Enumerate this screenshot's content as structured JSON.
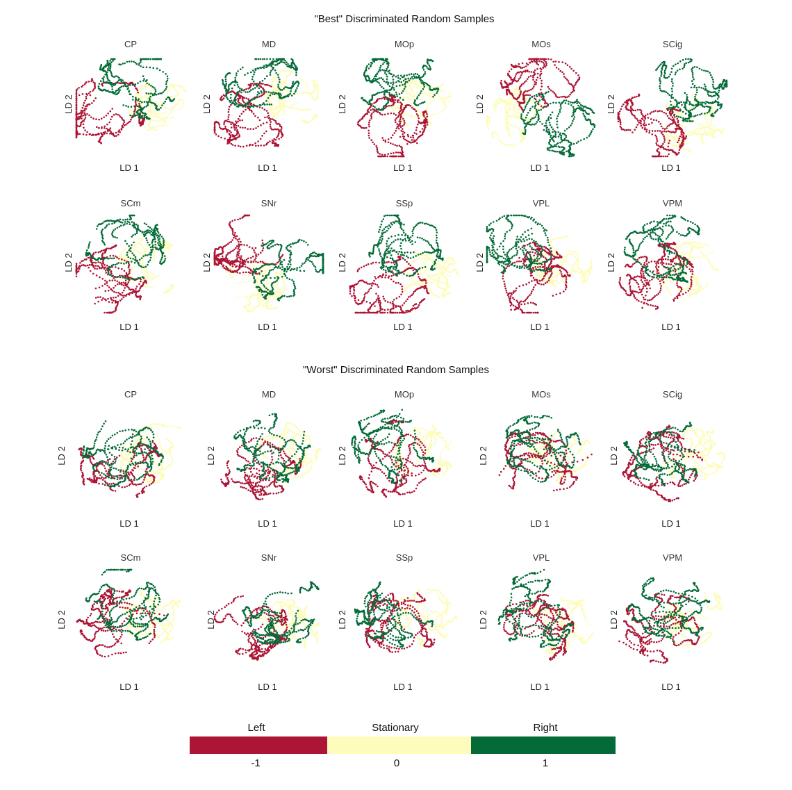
{
  "colors": {
    "left": "#ac1535",
    "stationary": "#fdfcbb",
    "right": "#046b38"
  },
  "axes": {
    "x_label": "LD 1",
    "y_label": "LD 2"
  },
  "sections": [
    {
      "title": "\"Best\" Discriminated Random Samples",
      "panels": [
        {
          "title": "CP"
        },
        {
          "title": "MD"
        },
        {
          "title": "MOp"
        },
        {
          "title": "MOs"
        },
        {
          "title": "SCig"
        },
        {
          "title": "SCm"
        },
        {
          "title": "SNr"
        },
        {
          "title": "SSp"
        },
        {
          "title": "VPL"
        },
        {
          "title": "VPM"
        }
      ]
    },
    {
      "title": "\"Worst\" Discriminated Random Samples",
      "panels": [
        {
          "title": "CP"
        },
        {
          "title": "MD"
        },
        {
          "title": "MOp"
        },
        {
          "title": "MOs"
        },
        {
          "title": "SCig"
        },
        {
          "title": "SCm"
        },
        {
          "title": "SNr"
        },
        {
          "title": "SSp"
        },
        {
          "title": "VPL"
        },
        {
          "title": "VPM"
        }
      ]
    }
  ],
  "legend": {
    "labels": [
      "Left",
      "Stationary",
      "Right"
    ],
    "ticks": [
      "-1",
      "0",
      "1"
    ]
  },
  "chart_data": {
    "type": "scatter",
    "grid": false,
    "axis_ticks": false,
    "legend_position": "bottom",
    "series": [
      {
        "name": "Left",
        "value": -1,
        "color": "#ac1535"
      },
      {
        "name": "Stationary",
        "value": 0,
        "color": "#fdfcbb"
      },
      {
        "name": "Right",
        "value": 1,
        "color": "#046b38"
      }
    ],
    "panel_layout": "2 sections x 2 rows x 5 columns",
    "point_clouds": {
      "best": {
        "CP": {
          "left": {
            "c": [
              -0.55,
              -0.05
            ],
            "s": [
              0.28,
              0.26
            ]
          },
          "stationary": {
            "c": [
              0.55,
              0.0
            ],
            "s": [
              0.33,
              0.2
            ]
          },
          "right": {
            "c": [
              0.15,
              0.55
            ],
            "s": [
              0.2,
              0.3
            ]
          }
        },
        "MD": {
          "left": {
            "c": [
              -0.3,
              -0.2
            ],
            "s": [
              0.28,
              0.32
            ]
          },
          "stationary": {
            "c": [
              0.45,
              0.25
            ],
            "s": [
              0.33,
              0.25
            ]
          },
          "right": {
            "c": [
              -0.15,
              0.55
            ],
            "s": [
              0.3,
              0.22
            ]
          }
        },
        "MOp": {
          "left": {
            "c": [
              -0.3,
              -0.5
            ],
            "s": [
              0.28,
              0.28
            ]
          },
          "stationary": {
            "c": [
              0.35,
              0.15
            ],
            "s": [
              0.3,
              0.22
            ]
          },
          "right": {
            "c": [
              -0.1,
              0.55
            ],
            "s": [
              0.2,
              0.25
            ]
          }
        },
        "MOs": {
          "left": {
            "c": [
              0.05,
              0.55
            ],
            "s": [
              0.22,
              0.32
            ]
          },
          "stationary": {
            "c": [
              -0.45,
              -0.2
            ],
            "s": [
              0.28,
              0.3
            ]
          },
          "right": {
            "c": [
              0.25,
              -0.25
            ],
            "s": [
              0.3,
              0.28
            ]
          }
        },
        "SCig": {
          "left": {
            "c": [
              -0.45,
              -0.45
            ],
            "s": [
              0.28,
              0.25
            ]
          },
          "stationary": {
            "c": [
              0.35,
              -0.35
            ],
            "s": [
              0.3,
              0.25
            ]
          },
          "right": {
            "c": [
              0.3,
              0.45
            ],
            "s": [
              0.14,
              0.35
            ]
          }
        },
        "SCm": {
          "left": {
            "c": [
              -0.45,
              -0.35
            ],
            "s": [
              0.3,
              0.35
            ]
          },
          "stationary": {
            "c": [
              0.35,
              0.0
            ],
            "s": [
              0.32,
              0.35
            ]
          },
          "right": {
            "c": [
              -0.05,
              0.3
            ],
            "s": [
              0.25,
              0.35
            ]
          }
        },
        "SNr": {
          "left": {
            "c": [
              -0.35,
              0.4
            ],
            "s": [
              0.25,
              0.35
            ]
          },
          "stationary": {
            "c": [
              -0.2,
              -0.45
            ],
            "s": [
              0.32,
              0.25
            ]
          },
          "right": {
            "c": [
              0.4,
              -0.1
            ],
            "s": [
              0.3,
              0.25
            ]
          }
        },
        "SSp": {
          "left": {
            "c": [
              -0.3,
              -0.55
            ],
            "s": [
              0.3,
              0.22
            ]
          },
          "stationary": {
            "c": [
              0.45,
              -0.2
            ],
            "s": [
              0.28,
              0.2
            ]
          },
          "right": {
            "c": [
              0.05,
              0.45
            ],
            "s": [
              0.2,
              0.3
            ]
          }
        },
        "VPL": {
          "left": {
            "c": [
              -0.2,
              -0.35
            ],
            "s": [
              0.28,
              0.3
            ]
          },
          "stationary": {
            "c": [
              0.4,
              0.05
            ],
            "s": [
              0.3,
              0.25
            ]
          },
          "right": {
            "c": [
              -0.35,
              0.45
            ],
            "s": [
              0.35,
              0.22
            ]
          }
        },
        "VPM": {
          "left": {
            "c": [
              -0.25,
              -0.3
            ],
            "s": [
              0.25,
              0.35
            ]
          },
          "stationary": {
            "c": [
              0.35,
              0.0
            ],
            "s": [
              0.3,
              0.3
            ]
          },
          "right": {
            "c": [
              -0.15,
              0.35
            ],
            "s": [
              0.25,
              0.32
            ]
          }
        }
      },
      "worst": {
        "CP": {
          "left": {
            "c": [
              -0.2,
              -0.15
            ],
            "s": [
              0.35,
              0.35
            ]
          },
          "stationary": {
            "c": [
              0.3,
              0.0
            ],
            "s": [
              0.35,
              0.35
            ]
          },
          "right": {
            "c": [
              -0.1,
              0.1
            ],
            "s": [
              0.4,
              0.5
            ]
          }
        },
        "MD": {
          "left": {
            "c": [
              -0.15,
              -0.15
            ],
            "s": [
              0.4,
              0.38
            ]
          },
          "stationary": {
            "c": [
              0.3,
              0.1
            ],
            "s": [
              0.35,
              0.38
            ]
          },
          "right": {
            "c": [
              0.05,
              0.15
            ],
            "s": [
              0.38,
              0.38
            ]
          }
        },
        "MOp": {
          "left": {
            "c": [
              -0.1,
              -0.15
            ],
            "s": [
              0.35,
              0.38
            ]
          },
          "stationary": {
            "c": [
              0.35,
              0.05
            ],
            "s": [
              0.32,
              0.32
            ]
          },
          "right": {
            "c": [
              -0.2,
              0.2
            ],
            "s": [
              0.35,
              0.35
            ]
          }
        },
        "MOs": {
          "left": {
            "c": [
              -0.05,
              -0.2
            ],
            "s": [
              0.4,
              0.45
            ]
          },
          "stationary": {
            "c": [
              0.3,
              0.0
            ],
            "s": [
              0.3,
              0.35
            ]
          },
          "right": {
            "c": [
              0.0,
              0.1
            ],
            "s": [
              0.35,
              0.4
            ]
          }
        },
        "SCig": {
          "left": {
            "c": [
              -0.15,
              -0.15
            ],
            "s": [
              0.32,
              0.3
            ]
          },
          "stationary": {
            "c": [
              0.4,
              0.0
            ],
            "s": [
              0.3,
              0.25
            ]
          },
          "right": {
            "c": [
              -0.1,
              0.1
            ],
            "s": [
              0.35,
              0.3
            ]
          }
        },
        "SCm": {
          "left": {
            "c": [
              -0.2,
              -0.2
            ],
            "s": [
              0.35,
              0.38
            ]
          },
          "stationary": {
            "c": [
              0.4,
              0.0
            ],
            "s": [
              0.3,
              0.28
            ]
          },
          "right": {
            "c": [
              -0.05,
              0.3
            ],
            "s": [
              0.3,
              0.35
            ]
          }
        },
        "SNr": {
          "left": {
            "c": [
              -0.35,
              -0.1
            ],
            "s": [
              0.38,
              0.25
            ]
          },
          "stationary": {
            "c": [
              0.35,
              -0.2
            ],
            "s": [
              0.25,
              0.3
            ]
          },
          "right": {
            "c": [
              0.25,
              0.15
            ],
            "s": [
              0.3,
              0.3
            ]
          }
        },
        "SSp": {
          "left": {
            "c": [
              -0.05,
              -0.1
            ],
            "s": [
              0.38,
              0.4
            ]
          },
          "stationary": {
            "c": [
              0.35,
              0.1
            ],
            "s": [
              0.28,
              0.3
            ]
          },
          "right": {
            "c": [
              -0.1,
              0.1
            ],
            "s": [
              0.38,
              0.4
            ]
          }
        },
        "VPL": {
          "left": {
            "c": [
              -0.15,
              -0.2
            ],
            "s": [
              0.35,
              0.35
            ]
          },
          "stationary": {
            "c": [
              0.35,
              -0.1
            ],
            "s": [
              0.32,
              0.25
            ]
          },
          "right": {
            "c": [
              -0.1,
              0.1
            ],
            "s": [
              0.35,
              0.45
            ]
          }
        },
        "VPM": {
          "left": {
            "c": [
              -0.2,
              -0.2
            ],
            "s": [
              0.35,
              0.35
            ]
          },
          "stationary": {
            "c": [
              0.4,
              0.05
            ],
            "s": [
              0.28,
              0.3
            ]
          },
          "right": {
            "c": [
              -0.05,
              0.2
            ],
            "s": [
              0.35,
              0.38
            ]
          }
        }
      }
    }
  }
}
